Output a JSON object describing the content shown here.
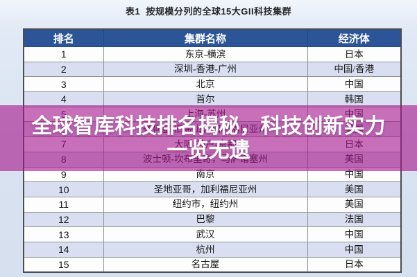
{
  "page": {
    "title": "表1  按规模分列的全球15大GII科技集群"
  },
  "table": {
    "headers": [
      "排名",
      "集群名称",
      "经济体"
    ],
    "rows": [
      {
        "rank": "1",
        "cluster": "东京-横滨",
        "economy": "日本"
      },
      {
        "rank": "2",
        "cluster": "深圳-香港-广州",
        "economy": "中国/香港"
      },
      {
        "rank": "3",
        "cluster": "北京",
        "economy": "中国"
      },
      {
        "rank": "4",
        "cluster": "首尔",
        "economy": "韩国"
      },
      {
        "rank": "5",
        "cluster": "上海-苏州",
        "economy": "中国"
      },
      {
        "rank": "6",
        "cluster": "圣何塞-旧金山，加利福尼亚州",
        "economy": "美国"
      },
      {
        "rank": "7",
        "cluster": "大阪-神户-京都",
        "economy": "日本"
      },
      {
        "rank": "8",
        "cluster": "波士顿-坎布里奇，马萨诸塞州",
        "economy": "美国"
      },
      {
        "rank": "9",
        "cluster": "南京",
        "economy": "中国"
      },
      {
        "rank": "10",
        "cluster": "圣地亚哥，加利福尼亚州",
        "economy": "美国"
      },
      {
        "rank": "11",
        "cluster": "纽约市，纽约州",
        "economy": "美国"
      },
      {
        "rank": "12",
        "cluster": "巴黎",
        "economy": "法国"
      },
      {
        "rank": "13",
        "cluster": "武汉",
        "economy": "中国"
      },
      {
        "rank": "14",
        "cluster": "杭州",
        "economy": "中国"
      },
      {
        "rank": "15",
        "cluster": "名古屋",
        "economy": "日本"
      }
    ]
  },
  "overlay": {
    "line1": "全球智库科技排名揭秘，科技创新实力",
    "line2": "一览无遗",
    "background_color": "#a7188c",
    "background_opacity": "0.62",
    "text_color": "#ffffff"
  },
  "colors": {
    "header_background": "#2b5597",
    "header_text": "#ffffff",
    "row_white": "#fdfdfe",
    "row_alt": "#d9dff0",
    "table_border": "#4a4d52",
    "cell_border": "#8f9398",
    "page_background": "#d8e2f0",
    "caption_text": "#262626"
  }
}
